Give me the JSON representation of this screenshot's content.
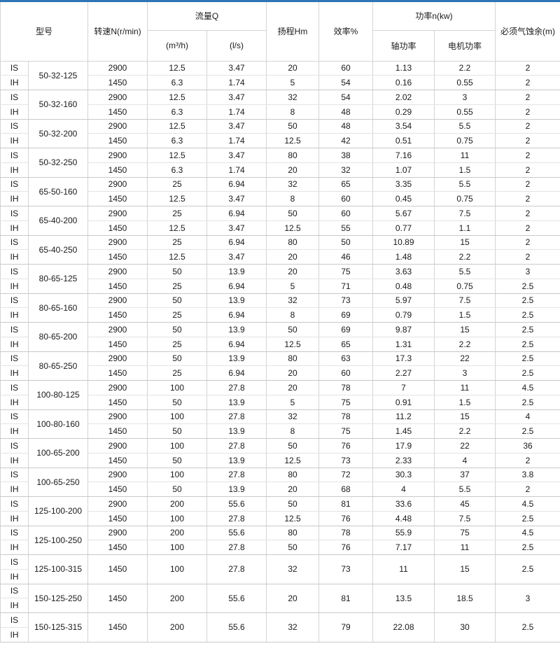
{
  "colors": {
    "accent_top_border": "#2e75b6",
    "grid_line": "#d4d4d4",
    "inner_divider": "#e4e4e4",
    "group_divider": "#c9c9c9",
    "text": "#1a1a1a",
    "background": "#ffffff"
  },
  "table": {
    "header": {
      "model": "型号",
      "speed": "转速N(r/min)",
      "flow": "流量Q",
      "flow_m3h": "(m³/h)",
      "flow_ls": "(l/s)",
      "head": "扬程Hm",
      "efficiency": "效率%",
      "power": "功率n(kw)",
      "power_shaft": "轴功率",
      "power_motor": "电机功率",
      "npsh": "必须气蚀余(m)"
    },
    "groups": [
      {
        "model": "50-32-125",
        "rows": [
          {
            "series": "IS",
            "speed": "2900",
            "flow_m3h": "12.5",
            "flow_ls": "3.47",
            "head": "20",
            "efficiency": "60",
            "shaft_power": "1.13",
            "motor_power": "2.2",
            "npsh": "2"
          },
          {
            "series": "IH",
            "speed": "1450",
            "flow_m3h": "6.3",
            "flow_ls": "1.74",
            "head": "5",
            "efficiency": "54",
            "shaft_power": "0.16",
            "motor_power": "0.55",
            "npsh": "2"
          }
        ]
      },
      {
        "model": "50-32-160",
        "rows": [
          {
            "series": "IS",
            "speed": "2900",
            "flow_m3h": "12.5",
            "flow_ls": "3.47",
            "head": "32",
            "efficiency": "54",
            "shaft_power": "2.02",
            "motor_power": "3",
            "npsh": "2"
          },
          {
            "series": "IH",
            "speed": "1450",
            "flow_m3h": "6.3",
            "flow_ls": "1.74",
            "head": "8",
            "efficiency": "48",
            "shaft_power": "0.29",
            "motor_power": "0.55",
            "npsh": "2"
          }
        ]
      },
      {
        "model": "50-32-200",
        "rows": [
          {
            "series": "IS",
            "speed": "2900",
            "flow_m3h": "12.5",
            "flow_ls": "3.47",
            "head": "50",
            "efficiency": "48",
            "shaft_power": "3.54",
            "motor_power": "5.5",
            "npsh": "2"
          },
          {
            "series": "IH",
            "speed": "1450",
            "flow_m3h": "6.3",
            "flow_ls": "1.74",
            "head": "12.5",
            "efficiency": "42",
            "shaft_power": "0.51",
            "motor_power": "0.75",
            "npsh": "2"
          }
        ]
      },
      {
        "model": "50-32-250",
        "rows": [
          {
            "series": "IS",
            "speed": "2900",
            "flow_m3h": "12.5",
            "flow_ls": "3.47",
            "head": "80",
            "efficiency": "38",
            "shaft_power": "7.16",
            "motor_power": "11",
            "npsh": "2"
          },
          {
            "series": "IH",
            "speed": "1450",
            "flow_m3h": "6.3",
            "flow_ls": "1.74",
            "head": "20",
            "efficiency": "32",
            "shaft_power": "1.07",
            "motor_power": "1.5",
            "npsh": "2"
          }
        ]
      },
      {
        "model": "65-50-160",
        "rows": [
          {
            "series": "IS",
            "speed": "2900",
            "flow_m3h": "25",
            "flow_ls": "6.94",
            "head": "32",
            "efficiency": "65",
            "shaft_power": "3.35",
            "motor_power": "5.5",
            "npsh": "2"
          },
          {
            "series": "IH",
            "speed": "1450",
            "flow_m3h": "12.5",
            "flow_ls": "3.47",
            "head": "8",
            "efficiency": "60",
            "shaft_power": "0.45",
            "motor_power": "0.75",
            "npsh": "2"
          }
        ]
      },
      {
        "model": "65-40-200",
        "rows": [
          {
            "series": "IS",
            "speed": "2900",
            "flow_m3h": "25",
            "flow_ls": "6.94",
            "head": "50",
            "efficiency": "60",
            "shaft_power": "5.67",
            "motor_power": "7.5",
            "npsh": "2"
          },
          {
            "series": "IH",
            "speed": "1450",
            "flow_m3h": "12.5",
            "flow_ls": "3.47",
            "head": "12.5",
            "efficiency": "55",
            "shaft_power": "0.77",
            "motor_power": "1.1",
            "npsh": "2"
          }
        ]
      },
      {
        "model": "65-40-250",
        "rows": [
          {
            "series": "IS",
            "speed": "2900",
            "flow_m3h": "25",
            "flow_ls": "6.94",
            "head": "80",
            "efficiency": "50",
            "shaft_power": "10.89",
            "motor_power": "15",
            "npsh": "2"
          },
          {
            "series": "IH",
            "speed": "1450",
            "flow_m3h": "12.5",
            "flow_ls": "3.47",
            "head": "20",
            "efficiency": "46",
            "shaft_power": "1.48",
            "motor_power": "2.2",
            "npsh": "2"
          }
        ]
      },
      {
        "model": "80-65-125",
        "rows": [
          {
            "series": "IS",
            "speed": "2900",
            "flow_m3h": "50",
            "flow_ls": "13.9",
            "head": "20",
            "efficiency": "75",
            "shaft_power": "3.63",
            "motor_power": "5.5",
            "npsh": "3"
          },
          {
            "series": "IH",
            "speed": "1450",
            "flow_m3h": "25",
            "flow_ls": "6.94",
            "head": "5",
            "efficiency": "71",
            "shaft_power": "0.48",
            "motor_power": "0.75",
            "npsh": "2.5"
          }
        ]
      },
      {
        "model": "80-65-160",
        "rows": [
          {
            "series": "IS",
            "speed": "2900",
            "flow_m3h": "50",
            "flow_ls": "13.9",
            "head": "32",
            "efficiency": "73",
            "shaft_power": "5.97",
            "motor_power": "7.5",
            "npsh": "2.5"
          },
          {
            "series": "IH",
            "speed": "1450",
            "flow_m3h": "25",
            "flow_ls": "6.94",
            "head": "8",
            "efficiency": "69",
            "shaft_power": "0.79",
            "motor_power": "1.5",
            "npsh": "2.5"
          }
        ]
      },
      {
        "model": "80-65-200",
        "rows": [
          {
            "series": "IS",
            "speed": "2900",
            "flow_m3h": "50",
            "flow_ls": "13.9",
            "head": "50",
            "efficiency": "69",
            "shaft_power": "9.87",
            "motor_power": "15",
            "npsh": "2.5"
          },
          {
            "series": "IH",
            "speed": "1450",
            "flow_m3h": "25",
            "flow_ls": "6.94",
            "head": "12.5",
            "efficiency": "65",
            "shaft_power": "1.31",
            "motor_power": "2.2",
            "npsh": "2.5"
          }
        ]
      },
      {
        "model": "80-65-250",
        "rows": [
          {
            "series": "IS",
            "speed": "2900",
            "flow_m3h": "50",
            "flow_ls": "13.9",
            "head": "80",
            "efficiency": "63",
            "shaft_power": "17.3",
            "motor_power": "22",
            "npsh": "2.5"
          },
          {
            "series": "IH",
            "speed": "1450",
            "flow_m3h": "25",
            "flow_ls": "6.94",
            "head": "20",
            "efficiency": "60",
            "shaft_power": "2.27",
            "motor_power": "3",
            "npsh": "2.5"
          }
        ]
      },
      {
        "model": "100-80-125",
        "rows": [
          {
            "series": "IS",
            "speed": "2900",
            "flow_m3h": "100",
            "flow_ls": "27.8",
            "head": "20",
            "efficiency": "78",
            "shaft_power": "7",
            "motor_power": "11",
            "npsh": "4.5"
          },
          {
            "series": "IH",
            "speed": "1450",
            "flow_m3h": "50",
            "flow_ls": "13.9",
            "head": "5",
            "efficiency": "75",
            "shaft_power": "0.91",
            "motor_power": "1.5",
            "npsh": "2.5"
          }
        ]
      },
      {
        "model": "100-80-160",
        "rows": [
          {
            "series": "IS",
            "speed": "2900",
            "flow_m3h": "100",
            "flow_ls": "27.8",
            "head": "32",
            "efficiency": "78",
            "shaft_power": "11.2",
            "motor_power": "15",
            "npsh": "4"
          },
          {
            "series": "IH",
            "speed": "1450",
            "flow_m3h": "50",
            "flow_ls": "13.9",
            "head": "8",
            "efficiency": "75",
            "shaft_power": "1.45",
            "motor_power": "2.2",
            "npsh": "2.5"
          }
        ]
      },
      {
        "model": "100-65-200",
        "rows": [
          {
            "series": "IS",
            "speed": "2900",
            "flow_m3h": "100",
            "flow_ls": "27.8",
            "head": "50",
            "efficiency": "76",
            "shaft_power": "17.9",
            "motor_power": "22",
            "npsh": "36"
          },
          {
            "series": "IH",
            "speed": "1450",
            "flow_m3h": "50",
            "flow_ls": "13.9",
            "head": "12.5",
            "efficiency": "73",
            "shaft_power": "2.33",
            "motor_power": "4",
            "npsh": "2"
          }
        ]
      },
      {
        "model": "100-65-250",
        "rows": [
          {
            "series": "IS",
            "speed": "2900",
            "flow_m3h": "100",
            "flow_ls": "27.8",
            "head": "80",
            "efficiency": "72",
            "shaft_power": "30.3",
            "motor_power": "37",
            "npsh": "3.8"
          },
          {
            "series": "IH",
            "speed": "1450",
            "flow_m3h": "50",
            "flow_ls": "13.9",
            "head": "20",
            "efficiency": "68",
            "shaft_power": "4",
            "motor_power": "5.5",
            "npsh": "2"
          }
        ]
      },
      {
        "model": "125-100-200",
        "rows": [
          {
            "series": "IS",
            "speed": "2900",
            "flow_m3h": "200",
            "flow_ls": "55.6",
            "head": "50",
            "efficiency": "81",
            "shaft_power": "33.6",
            "motor_power": "45",
            "npsh": "4.5"
          },
          {
            "series": "IH",
            "speed": "1450",
            "flow_m3h": "100",
            "flow_ls": "27.8",
            "head": "12.5",
            "efficiency": "76",
            "shaft_power": "4.48",
            "motor_power": "7.5",
            "npsh": "2.5"
          }
        ]
      },
      {
        "model": "125-100-250",
        "rows": [
          {
            "series": "IS",
            "speed": "2900",
            "flow_m3h": "200",
            "flow_ls": "55.6",
            "head": "80",
            "efficiency": "78",
            "shaft_power": "55.9",
            "motor_power": "75",
            "npsh": "4.5"
          },
          {
            "series": "IH",
            "speed": "1450",
            "flow_m3h": "100",
            "flow_ls": "27.8",
            "head": "50",
            "efficiency": "76",
            "shaft_power": "7.17",
            "motor_power": "11",
            "npsh": "2.5"
          }
        ]
      },
      {
        "model": "125-100-315",
        "rows": [
          {
            "series": "IS"
          },
          {
            "series": "IH"
          }
        ],
        "merged_row": {
          "speed": "1450",
          "flow_m3h": "100",
          "flow_ls": "27.8",
          "head": "32",
          "efficiency": "73",
          "shaft_power": "11",
          "motor_power": "15",
          "npsh": "2.5"
        }
      },
      {
        "model": "150-125-250",
        "rows": [
          {
            "series": "IS"
          },
          {
            "series": "IH"
          }
        ],
        "merged_row": {
          "speed": "1450",
          "flow_m3h": "200",
          "flow_ls": "55.6",
          "head": "20",
          "efficiency": "81",
          "shaft_power": "13.5",
          "motor_power": "18.5",
          "npsh": "3"
        }
      },
      {
        "model": "150-125-315",
        "rows": [
          {
            "series": "IS"
          },
          {
            "series": "IH"
          }
        ],
        "merged_row": {
          "speed": "1450",
          "flow_m3h": "200",
          "flow_ls": "55.6",
          "head": "32",
          "efficiency": "79",
          "shaft_power": "22.08",
          "motor_power": "30",
          "npsh": "2.5"
        }
      }
    ]
  }
}
